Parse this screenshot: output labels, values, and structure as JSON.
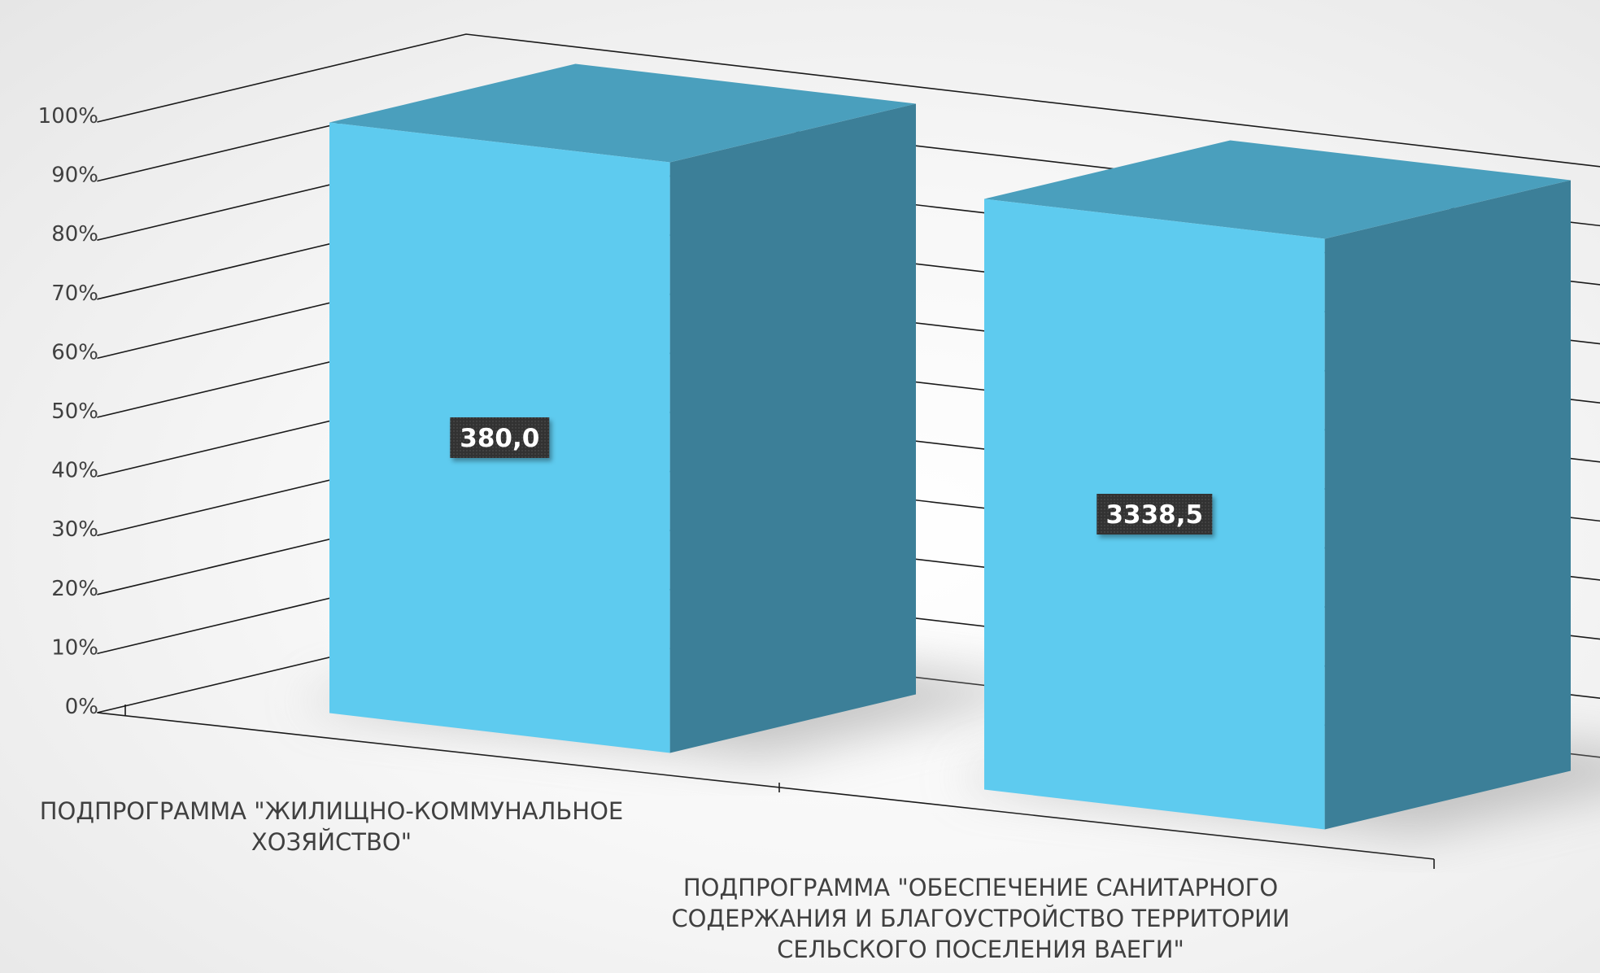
{
  "chart_data": {
    "type": "bar",
    "stacked_percent": true,
    "three_d": true,
    "categories": [
      [
        "ПОДПРОГРАММА \"ЖИЛИЩНО-КОММУНАЛЬНОЕ",
        "ХОЗЯЙСТВО\""
      ],
      [
        "ПОДПРОГРАММА \"ОБЕСПЕЧЕНИЕ САНИТАРНОГО",
        "СОДЕРЖАНИЯ И БЛАГОУСТРОЙСТВО ТЕРРИТОРИИ",
        "СЕЛЬСКОГО ПОСЕЛЕНИЯ ВАЕГИ\""
      ]
    ],
    "values": [
      380.0,
      3338.5
    ],
    "data_labels": [
      "380,0",
      "3338,5"
    ],
    "percent_of_total": [
      100,
      100
    ],
    "y_ticks": [
      "0%",
      "10%",
      "20%",
      "30%",
      "40%",
      "50%",
      "60%",
      "70%",
      "80%",
      "90%",
      "100%"
    ],
    "ylim": [
      0,
      100
    ],
    "grid": true,
    "legend": "none",
    "colors": {
      "bar_front": "#5ecbef",
      "bar_top": "#4a9fbd",
      "bar_side": "#3c7f98",
      "label_bg": "#333333"
    }
  }
}
